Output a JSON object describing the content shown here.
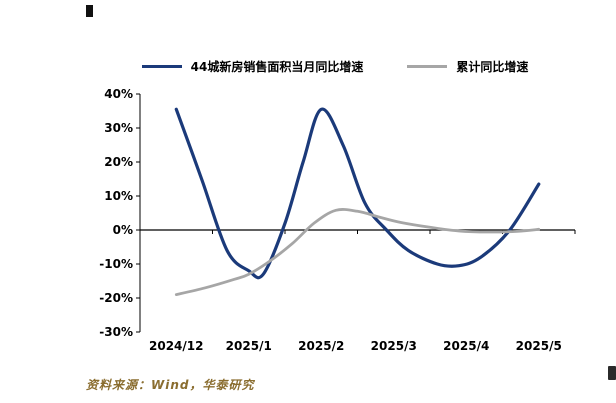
{
  "source_note": "资料来源：Wind，华泰研究",
  "chart_data": {
    "type": "line",
    "title": "",
    "categories": [
      "2024/12",
      "2025/1",
      "2025/2",
      "2025/3",
      "2025/4",
      "2025/5"
    ],
    "ylim": [
      -30,
      40
    ],
    "ytick_step": 10,
    "ytick_suffix": "%",
    "grid": "off",
    "legend_position": "top",
    "series": [
      {
        "name": "44城新房销售面积当月同比增速",
        "color": "#1b3a7a",
        "width": 3.2,
        "points": [
          [
            0,
            35.5
          ],
          [
            0.35,
            15
          ],
          [
            0.7,
            -6
          ],
          [
            1.0,
            -12
          ],
          [
            1.2,
            -13
          ],
          [
            1.5,
            2
          ],
          [
            1.75,
            20
          ],
          [
            2.0,
            35.5
          ],
          [
            2.3,
            25
          ],
          [
            2.6,
            8
          ],
          [
            2.9,
            0
          ],
          [
            3.2,
            -6
          ],
          [
            3.6,
            -10
          ],
          [
            3.9,
            -10.5
          ],
          [
            4.2,
            -8
          ],
          [
            4.6,
            0
          ],
          [
            5.0,
            13.5
          ]
        ]
      },
      {
        "name": "累计同比增速",
        "color": "#a6a6a6",
        "width": 2.8,
        "points": [
          [
            0,
            -19
          ],
          [
            0.4,
            -17
          ],
          [
            0.8,
            -14.5
          ],
          [
            1.0,
            -13
          ],
          [
            1.3,
            -9
          ],
          [
            1.6,
            -4
          ],
          [
            1.9,
            2
          ],
          [
            2.2,
            5.8
          ],
          [
            2.5,
            5.5
          ],
          [
            2.8,
            3.8
          ],
          [
            3.1,
            2.2
          ],
          [
            3.5,
            0.8
          ],
          [
            3.9,
            -0.3
          ],
          [
            4.3,
            -0.6
          ],
          [
            4.7,
            -0.4
          ],
          [
            5.0,
            0.2
          ]
        ]
      }
    ]
  }
}
